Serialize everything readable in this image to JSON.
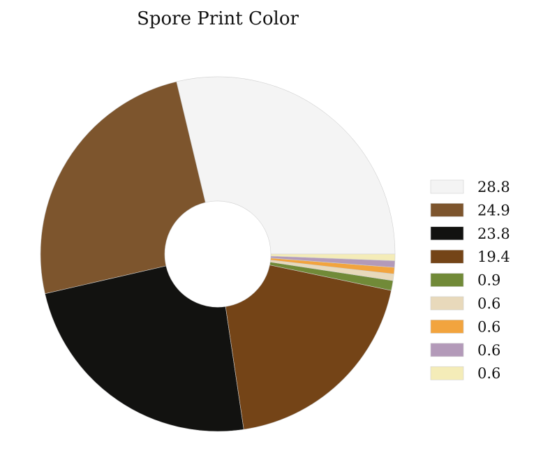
{
  "chart_data": {
    "type": "pie",
    "title": "Spore Print Color",
    "donut": true,
    "legend_position": "right",
    "slices": [
      {
        "label": "28.8",
        "value": 28.8,
        "color": "#f4f4f4"
      },
      {
        "label": "24.9",
        "value": 24.9,
        "color": "#7d552d"
      },
      {
        "label": "23.8",
        "value": 23.8,
        "color": "#121210"
      },
      {
        "label": "19.4",
        "value": 19.4,
        "color": "#744417"
      },
      {
        "label": "0.9",
        "value": 0.9,
        "color": "#718a38"
      },
      {
        "label": "0.6",
        "value": 0.6,
        "color": "#e8d9bb"
      },
      {
        "label": "0.6",
        "value": 0.6,
        "color": "#f2a43e"
      },
      {
        "label": "0.6",
        "value": 0.6,
        "color": "#b39ab9"
      },
      {
        "label": "0.6",
        "value": 0.6,
        "color": "#f4ecb8"
      }
    ]
  }
}
